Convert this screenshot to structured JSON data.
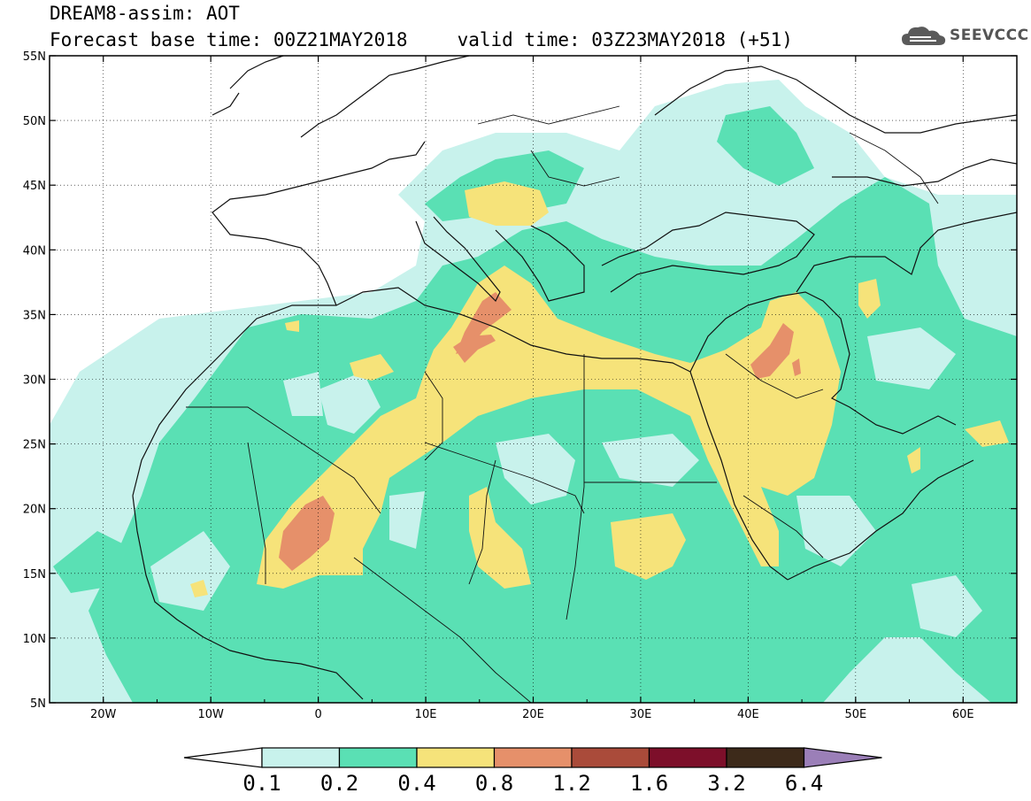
{
  "header": {
    "line1": "DREAM8-assim: AOT",
    "base_time": "Forecast base time: 00Z21MAY2018",
    "valid_time": "valid time: 03Z23MAY2018 (+51)",
    "logo_text": "SEEVCCC"
  },
  "axes": {
    "lat_labels": [
      "55N",
      "50N",
      "45N",
      "40N",
      "35N",
      "30N",
      "25N",
      "20N",
      "15N",
      "10N",
      "5N"
    ],
    "lon_labels": [
      "20W",
      "10W",
      "0",
      "10E",
      "20E",
      "30E",
      "40E",
      "50E",
      "60E"
    ],
    "lat_range": [
      5,
      55
    ],
    "lon_range": [
      -25,
      65
    ]
  },
  "colorbar": {
    "labels": [
      "0.1",
      "0.2",
      "0.4",
      "0.8",
      "1.2",
      "1.6",
      "3.2",
      "6.4"
    ],
    "colors": [
      "#ffffff",
      "#c8f2ec",
      "#5ae0b4",
      "#f6e37a",
      "#e6906a",
      "#aa4b3a",
      "#7d0f2a",
      "#3d2a1a",
      "#9b7fb8"
    ]
  }
}
